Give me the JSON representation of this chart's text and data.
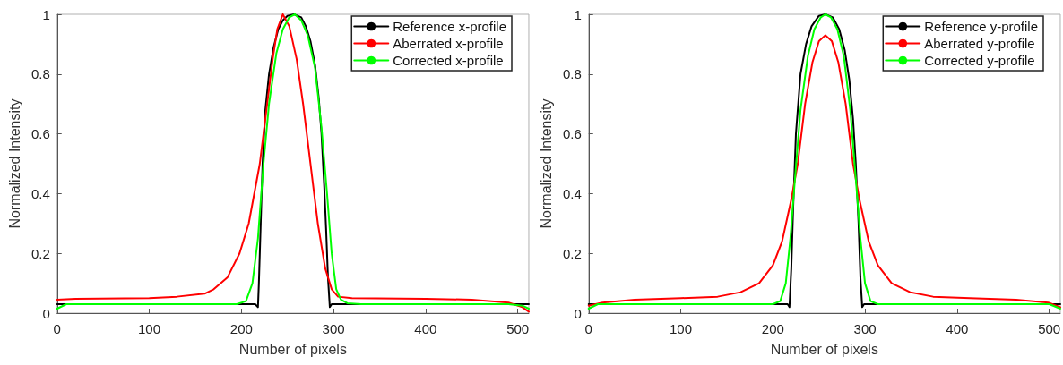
{
  "chart_data": [
    {
      "type": "line",
      "xlabel": "Number of pixels",
      "ylabel": "Normalized Intensity",
      "xlim": [
        0,
        512
      ],
      "xticks": [
        0,
        100,
        200,
        300,
        400,
        500
      ],
      "ylim": [
        0,
        1
      ],
      "yticks": [
        0,
        0.2,
        0.4,
        0.6,
        0.8,
        1
      ],
      "legend": "top right",
      "marker": "none",
      "line_style": "solid",
      "series": [
        {
          "name": "Reference x-profile",
          "color": "#000000",
          "x": [
            0,
            215,
            218,
            219,
            221,
            223,
            226,
            230,
            235,
            240,
            245,
            250,
            257,
            265,
            270,
            275,
            280,
            284,
            287,
            290,
            292,
            294,
            296,
            298,
            512
          ],
          "values": [
            0.03,
            0.03,
            0.02,
            0.1,
            0.3,
            0.5,
            0.68,
            0.8,
            0.89,
            0.95,
            0.98,
            0.995,
            1.0,
            0.99,
            0.96,
            0.91,
            0.83,
            0.72,
            0.6,
            0.42,
            0.28,
            0.12,
            0.02,
            0.03,
            0.03
          ]
        },
        {
          "name": "Aberrated x-profile",
          "color": "#ff0000",
          "x": [
            0,
            20,
            100,
            130,
            160,
            170,
            185,
            198,
            208,
            220,
            228,
            234,
            239,
            245,
            252,
            260,
            267,
            275,
            283,
            291,
            298,
            305,
            320,
            400,
            450,
            490,
            505,
            512
          ],
          "values": [
            0.045,
            0.048,
            0.05,
            0.055,
            0.065,
            0.08,
            0.12,
            0.2,
            0.3,
            0.5,
            0.7,
            0.85,
            0.95,
            1.0,
            0.96,
            0.85,
            0.7,
            0.5,
            0.3,
            0.15,
            0.08,
            0.055,
            0.05,
            0.048,
            0.045,
            0.035,
            0.02,
            0.005
          ]
        },
        {
          "name": "Corrected x-profile",
          "color": "#00ff00",
          "x": [
            0,
            10,
            195,
            205,
            212,
            218,
            224,
            230,
            238,
            245,
            252,
            258,
            265,
            272,
            280,
            287,
            293,
            298,
            303,
            308,
            315,
            330,
            490,
            505,
            512
          ],
          "values": [
            0.015,
            0.03,
            0.03,
            0.04,
            0.1,
            0.25,
            0.5,
            0.7,
            0.87,
            0.95,
            0.99,
            1.0,
            0.98,
            0.93,
            0.82,
            0.62,
            0.4,
            0.2,
            0.08,
            0.045,
            0.033,
            0.03,
            0.03,
            0.025,
            0.015
          ]
        }
      ]
    },
    {
      "type": "line",
      "xlabel": "Number of pixels",
      "ylabel": "Normalized Intensity",
      "xlim": [
        0,
        512
      ],
      "xticks": [
        0,
        100,
        200,
        300,
        400,
        500
      ],
      "ylim": [
        0,
        1
      ],
      "yticks": [
        0,
        0.2,
        0.4,
        0.6,
        0.8,
        1
      ],
      "legend": "top right",
      "marker": "none",
      "line_style": "solid",
      "series": [
        {
          "name": "Reference y-profile",
          "color": "#000000",
          "x": [
            0,
            216,
            218,
            220,
            222,
            225,
            230,
            236,
            242,
            250,
            257,
            265,
            272,
            278,
            283,
            287,
            290,
            293,
            295,
            297,
            299,
            512
          ],
          "values": [
            0.03,
            0.03,
            0.02,
            0.15,
            0.35,
            0.6,
            0.8,
            0.9,
            0.96,
            0.995,
            1.0,
            0.99,
            0.95,
            0.88,
            0.78,
            0.65,
            0.5,
            0.3,
            0.12,
            0.02,
            0.03,
            0.03
          ]
        },
        {
          "name": "Aberrated y-profile",
          "color": "#ff0000",
          "x": [
            0,
            15,
            50,
            100,
            140,
            165,
            185,
            200,
            210,
            220,
            227,
            235,
            243,
            250,
            257,
            264,
            271,
            279,
            287,
            294,
            304,
            314,
            329,
            349,
            374,
            414,
            464,
            499,
            512
          ],
          "values": [
            0.025,
            0.035,
            0.045,
            0.05,
            0.055,
            0.07,
            0.1,
            0.16,
            0.24,
            0.38,
            0.5,
            0.7,
            0.84,
            0.91,
            0.93,
            0.91,
            0.84,
            0.7,
            0.5,
            0.38,
            0.24,
            0.16,
            0.1,
            0.07,
            0.055,
            0.05,
            0.045,
            0.035,
            0.02
          ]
        },
        {
          "name": "Corrected y-profile",
          "color": "#00ff00",
          "x": [
            0,
            10,
            200,
            208,
            214,
            219,
            224,
            230,
            238,
            245,
            252,
            257,
            263,
            270,
            277,
            284,
            290,
            295,
            300,
            306,
            314,
            500,
            512
          ],
          "values": [
            0.015,
            0.03,
            0.03,
            0.04,
            0.1,
            0.25,
            0.45,
            0.68,
            0.86,
            0.95,
            0.99,
            1.0,
            0.99,
            0.95,
            0.86,
            0.68,
            0.45,
            0.25,
            0.1,
            0.04,
            0.03,
            0.03,
            0.015
          ]
        }
      ]
    }
  ]
}
